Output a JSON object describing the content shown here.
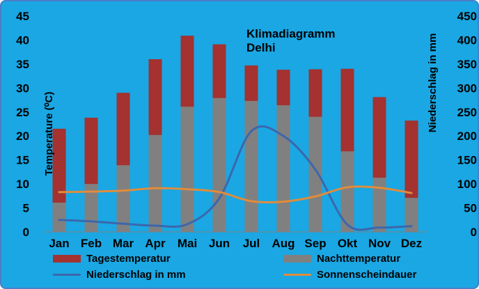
{
  "chart_data": {
    "type": "bar",
    "title": "Klimadiagramm",
    "subtitle": "Delhi",
    "categories": [
      "Jan",
      "Feb",
      "Mar",
      "Apr",
      "Mai",
      "Jun",
      "Jul",
      "Aug",
      "Sep",
      "Okt",
      "Nov",
      "Dez"
    ],
    "ylabel_left": "Temperature (⁰C)",
    "ylabel_right": "Niederschlag in mm",
    "ylim_left": [
      0,
      45
    ],
    "ylim_right": [
      0,
      450
    ],
    "yticks_left": [
      "0",
      "5",
      "10",
      "15",
      "20",
      "25",
      "30",
      "35",
      "40",
      "45"
    ],
    "yticks_right": [
      "0",
      "50",
      "100",
      "150",
      "200",
      "250",
      "300",
      "350",
      "400",
      "450"
    ],
    "grid": false,
    "legend_position": "bottom",
    "series": [
      {
        "name": "Tagestemperatur",
        "kind": "bar",
        "axis": "left",
        "color": "#a33230",
        "values": [
          21.5,
          23.8,
          29.0,
          36.0,
          40.9,
          39.1,
          34.7,
          33.8,
          33.9,
          34.0,
          28.1,
          23.2
        ]
      },
      {
        "name": "Nachttemperatur",
        "kind": "bar",
        "axis": "left",
        "color": "#808080",
        "values": [
          6.1,
          10.0,
          13.9,
          20.2,
          26.1,
          27.9,
          27.3,
          26.4,
          24.0,
          16.8,
          11.3,
          7.1
        ]
      },
      {
        "name": "Niederschlag in mm",
        "kind": "line",
        "axis": "right",
        "color": "#3c67ac",
        "values": [
          25,
          22,
          17,
          13,
          16,
          70,
          210,
          200,
          130,
          15,
          9,
          12
        ]
      },
      {
        "name": "Sonnenscheindauer",
        "kind": "line",
        "axis": "right",
        "color": "#e08c3c",
        "values": [
          83,
          84,
          86,
          91,
          89,
          83,
          64,
          63,
          74,
          93,
          92,
          81
        ]
      }
    ]
  }
}
